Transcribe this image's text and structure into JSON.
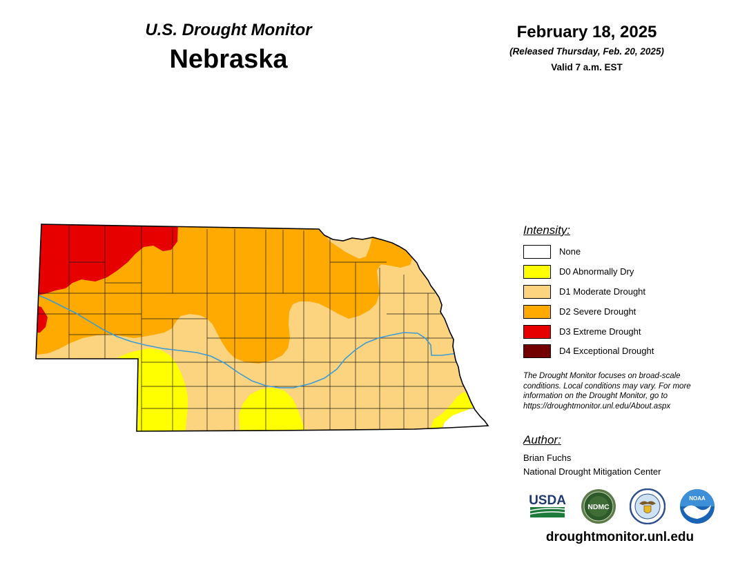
{
  "header": {
    "title": "U.S. Drought Monitor",
    "state": "Nebraska"
  },
  "dates": {
    "map_date": "February 18, 2025",
    "released": "(Released Thursday, Feb. 20, 2025)",
    "valid": "Valid 7 a.m. EST"
  },
  "legend": {
    "heading": "Intensity:",
    "items": [
      {
        "label": "None",
        "color": "#ffffff"
      },
      {
        "label": "D0 Abnormally Dry",
        "color": "#ffff00"
      },
      {
        "label": "D1 Moderate Drought",
        "color": "#fcd37f"
      },
      {
        "label": "D2 Severe Drought",
        "color": "#ffaa00"
      },
      {
        "label": "D3 Extreme Drought",
        "color": "#e60000"
      },
      {
        "label": "D4 Exceptional Drought",
        "color": "#730000"
      }
    ]
  },
  "note": {
    "lines": [
      "The Drought Monitor focuses on broad-scale",
      "conditions. Local conditions may vary. For more",
      "information on the Drought Monitor, go to",
      "https://droughtmonitor.unl.edu/About.aspx"
    ]
  },
  "author": {
    "heading": "Author:",
    "name": "Brian Fuchs",
    "organization": "National Drought Mitigation Center"
  },
  "logos": {
    "usda": "USDA",
    "ndmc": "NDMC",
    "doc_icon": "department-of-commerce-seal-icon",
    "noaa": "NOAA"
  },
  "footer": {
    "website": "droughtmonitor.unl.edu"
  },
  "map": {
    "river_color": "#3a9bd5",
    "border_color": "#000000"
  }
}
